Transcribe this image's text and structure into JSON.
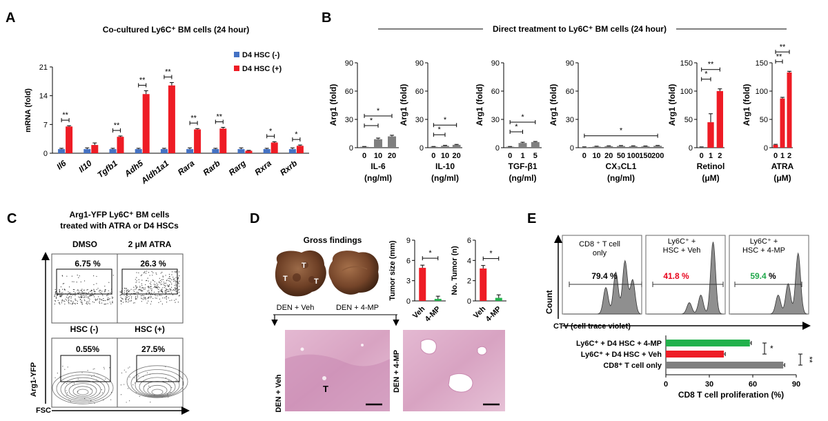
{
  "panelA": {
    "letter": "A",
    "title": "Co-cultured Ly6C⁺ BM cells (24 hour)",
    "ylabel": "mRNA (fold)",
    "legend": [
      "D4 HSC (-)",
      "D4 HSC (+)"
    ],
    "colors": {
      "neg": "#4472c4",
      "pos": "#ee1c25"
    }
  },
  "panelB": {
    "letter": "B",
    "title": "Direct treatment to Ly6C⁺ BM cells (24 hour)",
    "ylabel": "Arg1 (fold)",
    "colors": {
      "grey": "#7f7f7f",
      "red": "#ee1c25"
    }
  },
  "panelC": {
    "letter": "C",
    "title_line1": "Arg1-YFP Ly6C⁺ BM cells",
    "title_line2": "treated with ATRA  or D4 HSCs",
    "top_labels": [
      "DMSO",
      "2 μM  ATRA"
    ],
    "bottom_labels": [
      "HSC (-)",
      "HSC (+)"
    ],
    "percents": [
      "6.75 %",
      "26.3 %",
      "0.55%",
      "27.5%"
    ],
    "ylabel": "Arg1-YFP",
    "xlabel": "FSC"
  },
  "panelD": {
    "letter": "D",
    "gross_title": "Gross findings",
    "tumor_label": "T",
    "groups": [
      "DEN + Veh",
      "DEN + 4-MP"
    ],
    "histo_labels": [
      "DEN + Veh",
      "DEN + 4-MP"
    ],
    "tumor_size_label": "Tumor size (mm)",
    "tumor_n_label": "No. Tumor (n)",
    "bar_labels": [
      "Veh",
      "4-MP"
    ],
    "colors": {
      "veh": "#ee1c25",
      "mp": "#22b14c"
    }
  },
  "panelE": {
    "letter": "E",
    "hist_titles": [
      [
        "CD8 ⁺ T cell",
        "only"
      ],
      [
        "Ly6C⁺ +",
        "HSC + Veh"
      ],
      [
        "Ly6C⁺ +",
        "HSC + 4-MP"
      ]
    ],
    "percents": [
      "79.4 %",
      "41.8 %",
      "59.4"
    ],
    "pct_suffix": " %",
    "count_label": "Count",
    "ctv_label": "CTV (cell trace violet)",
    "bar_labels": [
      "Ly6C⁺ + D4 HSC + 4-MP",
      "Ly6C⁺ + D4 HSC + Veh",
      "CD8⁺ T cell only"
    ],
    "xlabel": "CD8 T cell proliferation (%)",
    "colors": {
      "mp": "#22b14c",
      "veh": "#ee1c25",
      "only": "#7f7f7f",
      "red_text": "#e8001a",
      "green_text": "#1fa84a"
    }
  },
  "chart_data": [
    {
      "id": "A",
      "type": "bar",
      "title": "Co-cultured Ly6C⁺ BM cells (24 hour)",
      "ylabel": "mRNA (fold)",
      "ylim": [
        0,
        21
      ],
      "yticks": [
        0,
        7,
        14,
        21
      ],
      "categories": [
        "Il6",
        "Il10",
        "Tgfb1",
        "Adh5",
        "Aldh1a1",
        "Rara",
        "Rarb",
        "Rarg",
        "Rxra",
        "Rxrb"
      ],
      "series": [
        {
          "name": "D4 HSC (-)",
          "values": [
            1.0,
            1.0,
            1.0,
            1.0,
            1.0,
            1.0,
            1.0,
            1.0,
            1.0,
            1.0
          ],
          "errors": [
            0.2,
            0.3,
            0.2,
            0.2,
            0.2,
            0.3,
            0.2,
            0.3,
            0.2,
            0.3
          ]
        },
        {
          "name": "D4 HSC (+)",
          "values": [
            6.5,
            2.0,
            4.0,
            14.4,
            16.5,
            5.8,
            6.0,
            0.6,
            2.6,
            1.8
          ],
          "errors": [
            0.2,
            0.5,
            0.2,
            0.8,
            0.7,
            0.2,
            0.3,
            0.1,
            0.2,
            0.2
          ]
        }
      ],
      "significance": [
        "**",
        "",
        "**",
        "**",
        "**",
        "**",
        "**",
        "",
        "*",
        "*"
      ]
    },
    {
      "id": "B-IL6",
      "type": "bar",
      "title": "IL-6",
      "unit": "(ng/ml)",
      "ylabel": "Arg1 (fold)",
      "ylim": [
        0,
        90
      ],
      "yticks": [
        0,
        30,
        60,
        90
      ],
      "categories": [
        "0",
        "10",
        "20"
      ],
      "values": [
        1,
        9,
        12
      ],
      "errors": [
        0.3,
        1.2,
        1.2
      ],
      "colors": [
        "grey",
        "grey",
        "grey"
      ],
      "brackets": [
        {
          "from": 0,
          "to": 1,
          "label": "*"
        },
        {
          "from": 0,
          "to": 2,
          "label": "*"
        }
      ]
    },
    {
      "id": "B-IL10",
      "type": "bar",
      "title": "IL-10",
      "unit": "(ng/ml)",
      "ylabel": "Arg1 (fold)",
      "ylim": [
        0,
        90
      ],
      "yticks": [
        0,
        30,
        60,
        90
      ],
      "categories": [
        "0",
        "10",
        "20"
      ],
      "values": [
        1,
        2,
        3
      ],
      "errors": [
        0.3,
        0.5,
        0.5
      ],
      "colors": [
        "grey",
        "grey",
        "grey"
      ],
      "brackets": [
        {
          "from": 0,
          "to": 1,
          "label": "*"
        },
        {
          "from": 0,
          "to": 2,
          "label": "*"
        }
      ]
    },
    {
      "id": "B-TGFb1",
      "type": "bar",
      "title": "TGF-β1",
      "unit": "(ng/ml)",
      "ylabel": "Arg1 (fold)",
      "ylim": [
        0,
        90
      ],
      "yticks": [
        0,
        30,
        60,
        90
      ],
      "categories": [
        "0",
        "1",
        "5"
      ],
      "values": [
        1,
        5,
        6
      ],
      "errors": [
        0.3,
        0.8,
        0.6
      ],
      "colors": [
        "grey",
        "grey",
        "grey"
      ],
      "brackets": [
        {
          "from": 0,
          "to": 1,
          "label": "*"
        },
        {
          "from": 0,
          "to": 2,
          "label": "*"
        }
      ]
    },
    {
      "id": "B-CX3CL1",
      "type": "bar",
      "title": "CX₃CL1",
      "unit": "(ng/ml)",
      "ylabel": "Arg1 (fold)",
      "ylim": [
        0,
        90
      ],
      "yticks": [
        0,
        30,
        60,
        90
      ],
      "categories": [
        "0",
        "10",
        "20",
        "50",
        "100",
        "150",
        "200"
      ],
      "values": [
        0.5,
        1.2,
        1.6,
        1.8,
        1.6,
        1.4,
        2.0
      ],
      "errors": [
        0.4,
        0.4,
        0.4,
        0.5,
        0.4,
        0.4,
        0.4
      ],
      "colors": [
        "grey",
        "grey",
        "grey",
        "grey",
        "grey",
        "grey",
        "grey"
      ],
      "brackets": [
        {
          "from": 0,
          "to": 6,
          "label": "*"
        }
      ]
    },
    {
      "id": "B-Retinol",
      "type": "bar",
      "title": "Retinol",
      "unit": "(μM)",
      "ylabel": "Arg1 (fold)",
      "ylim": [
        0,
        150
      ],
      "yticks": [
        0,
        50,
        100,
        150
      ],
      "categories": [
        "0",
        "1",
        "2"
      ],
      "values": [
        1,
        45,
        100
      ],
      "errors": [
        0.4,
        15,
        4
      ],
      "colors": [
        "grey",
        "red",
        "red"
      ],
      "brackets": [
        {
          "from": 0,
          "to": 1,
          "label": "*"
        },
        {
          "from": 0,
          "to": 2,
          "label": "**"
        }
      ]
    },
    {
      "id": "B-ATRA",
      "type": "bar",
      "title": "ATRA",
      "unit": "(μM)",
      "ylabel": "Arg1 (fold)",
      "ylim": [
        0,
        150
      ],
      "yticks": [
        0,
        50,
        100,
        150
      ],
      "categories": [
        "0",
        "1",
        "2"
      ],
      "values": [
        5,
        87,
        133
      ],
      "errors": [
        1,
        2,
        2
      ],
      "colors": [
        "red",
        "red",
        "red"
      ],
      "brackets": [
        {
          "from": 0,
          "to": 1,
          "label": "**"
        },
        {
          "from": 0,
          "to": 2,
          "label": "**"
        }
      ]
    },
    {
      "id": "D-size",
      "type": "bar",
      "ylabel": "Tumor size (mm)",
      "ylim": [
        0,
        9
      ],
      "yticks": [
        0,
        3,
        6,
        9
      ],
      "categories": [
        "Veh",
        "4-MP"
      ],
      "values": [
        4.9,
        0.3
      ],
      "errors": [
        0.4,
        0.4
      ],
      "colors": [
        "veh",
        "mp"
      ],
      "brackets": [
        {
          "from": 0,
          "to": 1,
          "label": "*"
        }
      ]
    },
    {
      "id": "D-number",
      "type": "bar",
      "ylabel": "No. Tumor (n)",
      "ylim": [
        0,
        6
      ],
      "yticks": [
        0,
        2,
        4,
        6
      ],
      "categories": [
        "Veh",
        "4-MP"
      ],
      "values": [
        3.2,
        0.3
      ],
      "errors": [
        0.3,
        0.3
      ],
      "colors": [
        "veh",
        "mp"
      ],
      "brackets": [
        {
          "from": 0,
          "to": 1,
          "label": "*"
        }
      ]
    },
    {
      "id": "E-bar",
      "type": "bar",
      "orientation": "horizontal",
      "xlabel": "CD8 T cell proliferation (%)",
      "xlim": [
        0,
        90
      ],
      "xticks": [
        0,
        30,
        60,
        90
      ],
      "categories": [
        "Ly6C⁺ + D4 HSC + 4-MP",
        "Ly6C⁺ + D4 HSC + Veh",
        "CD8⁺ T cell only"
      ],
      "values": [
        58,
        40,
        81
      ],
      "errors": [
        1,
        1,
        1
      ],
      "colors": [
        "mp",
        "veh",
        "only"
      ],
      "brackets": [
        {
          "from": 0,
          "to": 1,
          "label": "*"
        },
        {
          "from": 1,
          "to": 2,
          "label": "**"
        }
      ]
    }
  ]
}
